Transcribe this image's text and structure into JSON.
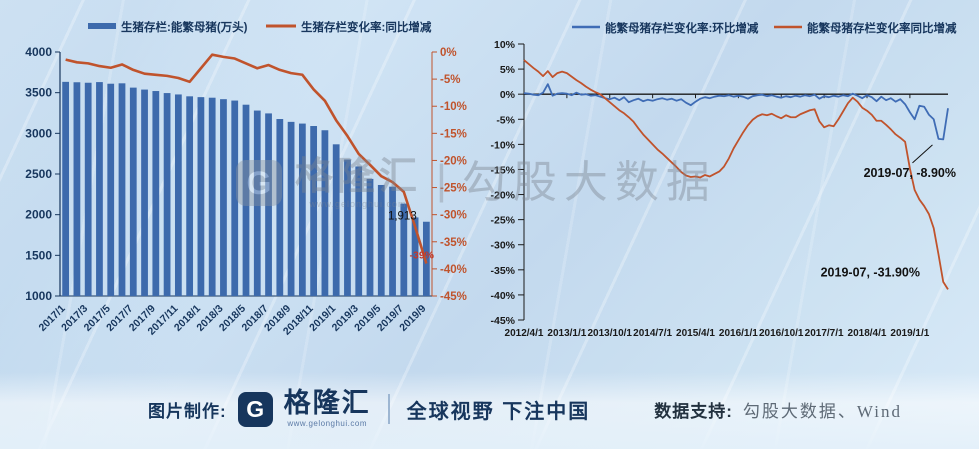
{
  "colors": {
    "navy": "#17365d",
    "bar_blue": "#3d6aac",
    "line_orange": "#c0532c",
    "line_blue": "#3f6cb5",
    "axis_black": "#1a1a1a",
    "label_red": "#c2392b"
  },
  "chart_data": [
    {
      "type": "bar+line",
      "title": "",
      "categories": [
        "2017/1",
        "2017/2",
        "2017/3",
        "2017/4",
        "2017/5",
        "2017/6",
        "2017/7",
        "2017/8",
        "2017/9",
        "2017/10",
        "2017/11",
        "2017/12",
        "2018/1",
        "2018/2",
        "2018/3",
        "2018/4",
        "2018/5",
        "2018/6",
        "2018/7",
        "2018/8",
        "2018/9",
        "2018/10",
        "2018/11",
        "2018/12",
        "2019/1",
        "2019/2",
        "2019/3",
        "2019/4",
        "2019/5",
        "2019/6",
        "2019/7",
        "2019/8",
        "2019/9"
      ],
      "series": [
        {
          "name": "生猪存栏:能繁母猪(万头)",
          "type": "bar",
          "axis": "left",
          "color": "#3d6aac",
          "values": [
            3633,
            3628,
            3622,
            3630,
            3610,
            3615,
            3562,
            3538,
            3520,
            3495,
            3478,
            3455,
            3445,
            3438,
            3420,
            3403,
            3352,
            3280,
            3245,
            3176,
            3141,
            3120,
            3090,
            3038,
            2865,
            2678,
            2593,
            2440,
            2365,
            2344,
            2136,
            1966,
            1913
          ]
        },
        {
          "name": "生猪存栏变化率:同比增减",
          "type": "line",
          "axis": "right",
          "color": "#c0532c",
          "values": [
            -1.4,
            -1.9,
            -2.1,
            -2.6,
            -2.9,
            -2.3,
            -3.3,
            -4.0,
            -4.2,
            -4.4,
            -4.8,
            -5.5,
            -3.0,
            -0.5,
            -0.9,
            -1.2,
            -2.1,
            -3.0,
            -2.4,
            -3.3,
            -3.9,
            -4.2,
            -6.9,
            -9.0,
            -12.6,
            -15.5,
            -18.8,
            -20.8,
            -22.9,
            -24.0,
            -25.8,
            -32.2,
            -39.0
          ]
        }
      ],
      "left_axis": {
        "min": 1000,
        "max": 4000,
        "ticks": [
          4000,
          3500,
          3000,
          2500,
          2000,
          1500,
          1000
        ]
      },
      "right_axis": {
        "min": -45,
        "max": 0,
        "ticks": [
          0,
          -5,
          -10,
          -15,
          -20,
          -25,
          -30,
          -35,
          -40,
          -45
        ],
        "suffix": "%"
      },
      "bar_point_label": "1,913",
      "line_point_label": "-39%",
      "x_label_every": 2,
      "grid": false,
      "legend_position": "top"
    },
    {
      "type": "line",
      "title": "",
      "x": [
        "2012/4",
        "2012/5",
        "2012/6",
        "2012/7",
        "2012/8",
        "2012/9",
        "2012/10",
        "2012/11",
        "2012/12",
        "2013/1",
        "2013/2",
        "2013/3",
        "2013/4",
        "2013/5",
        "2013/6",
        "2013/7",
        "2013/8",
        "2013/9",
        "2013/10",
        "2013/11",
        "2013/12",
        "2014/1",
        "2014/2",
        "2014/3",
        "2014/4",
        "2014/5",
        "2014/6",
        "2014/7",
        "2014/8",
        "2014/9",
        "2014/10",
        "2014/11",
        "2014/12",
        "2015/1",
        "2015/2",
        "2015/3",
        "2015/4",
        "2015/5",
        "2015/6",
        "2015/7",
        "2015/8",
        "2015/9",
        "2015/10",
        "2015/11",
        "2015/12",
        "2016/1",
        "2016/2",
        "2016/3",
        "2016/4",
        "2016/5",
        "2016/6",
        "2016/7",
        "2016/8",
        "2016/9",
        "2016/10",
        "2016/11",
        "2016/12",
        "2017/1",
        "2017/2",
        "2017/3",
        "2017/4",
        "2017/5",
        "2017/6",
        "2017/7",
        "2017/8",
        "2017/9",
        "2017/10",
        "2017/11",
        "2017/12",
        "2018/1",
        "2018/2",
        "2018/3",
        "2018/4",
        "2018/5",
        "2018/6",
        "2018/7",
        "2018/8",
        "2018/9",
        "2018/10",
        "2018/11",
        "2018/12",
        "2019/1",
        "2019/2",
        "2019/3",
        "2019/4",
        "2019/5",
        "2019/6",
        "2019/7",
        "2019/8",
        "2019/9"
      ],
      "series": [
        {
          "name": "能繁母猪存栏变化率:环比增减",
          "color": "#3f6cb5",
          "values": [
            0.2,
            0.1,
            -0.1,
            -0.2,
            0.3,
            2.0,
            -0.3,
            0.1,
            0.2,
            0.1,
            -0.2,
            0.3,
            -0.1,
            0.0,
            -0.3,
            -0.2,
            -0.5,
            -0.8,
            -1.0,
            -0.7,
            -1.2,
            -0.6,
            -1.6,
            -1.2,
            -0.9,
            -1.4,
            -1.1,
            -1.3,
            -1.0,
            -0.8,
            -1.1,
            -0.9,
            -1.3,
            -1.0,
            -1.7,
            -2.2,
            -1.5,
            -0.9,
            -0.6,
            -0.8,
            -0.5,
            -0.3,
            -0.4,
            -0.2,
            -0.5,
            -0.3,
            -0.5,
            -0.9,
            -0.4,
            -0.2,
            -0.1,
            -0.4,
            -0.2,
            -0.5,
            -0.7,
            -0.4,
            -0.6,
            -0.3,
            -0.5,
            -0.2,
            -0.4,
            -0.1,
            -0.9,
            -0.4,
            -0.6,
            -0.3,
            -0.5,
            -0.2,
            -0.4,
            0.1,
            -0.3,
            -0.8,
            -0.2,
            -0.6,
            -1.4,
            -0.5,
            -1.2,
            -0.8,
            -1.5,
            -1.0,
            -2.0,
            -3.6,
            -5.0,
            -2.3,
            -2.5,
            -4.1,
            -5.0,
            -8.9,
            -9.0,
            -2.8
          ]
        },
        {
          "name": "能繁母猪存栏变化率同比增减",
          "color": "#c0532c",
          "values": [
            6.8,
            6.0,
            5.2,
            4.5,
            3.6,
            4.6,
            3.4,
            4.2,
            4.5,
            4.2,
            3.5,
            2.8,
            2.2,
            1.5,
            0.9,
            0.4,
            0.0,
            -0.8,
            -1.6,
            -2.4,
            -3.2,
            -3.8,
            -4.6,
            -5.5,
            -6.8,
            -8.0,
            -9.0,
            -10.0,
            -11.0,
            -11.8,
            -12.7,
            -13.6,
            -14.5,
            -15.5,
            -16.2,
            -16.5,
            -16.4,
            -16.6,
            -16.1,
            -16.4,
            -15.9,
            -15.4,
            -14.4,
            -12.8,
            -10.8,
            -9.2,
            -7.6,
            -6.2,
            -5.1,
            -4.4,
            -4.0,
            -4.2,
            -3.9,
            -4.4,
            -4.8,
            -4.2,
            -4.6,
            -4.6,
            -4.0,
            -3.6,
            -3.2,
            -3.0,
            -5.4,
            -6.6,
            -6.2,
            -6.4,
            -5.0,
            -3.4,
            -1.8,
            -0.7,
            -1.5,
            -2.7,
            -3.3,
            -4.1,
            -5.3,
            -5.3,
            -6.1,
            -7.0,
            -8.0,
            -8.7,
            -9.5,
            -14.8,
            -19.1,
            -21.0,
            -22.3,
            -23.9,
            -26.7,
            -31.9,
            -37.4,
            -38.9
          ]
        }
      ],
      "y_axis": {
        "min": -45,
        "max": 10,
        "ticks": [
          10,
          5,
          0,
          -5,
          -10,
          -15,
          -20,
          -25,
          -30,
          -35,
          -40,
          -45
        ],
        "suffix": "%"
      },
      "x_tick_labels": [
        "2012/4/1",
        "2013/1/1",
        "2013/10/1",
        "2014/7/1",
        "2015/4/1",
        "2016/1/1",
        "2016/10/1",
        "2017/7/1",
        "2018/4/1",
        "2019/1/1"
      ],
      "x_tick_months": [
        0,
        9,
        18,
        27,
        36,
        45,
        54,
        63,
        72,
        81
      ],
      "annotations": [
        {
          "text": "2019-07, -8.90%",
          "series": 0,
          "index": 87
        },
        {
          "text": "2019-07, -31.90%",
          "series": 1,
          "index": 87
        }
      ],
      "grid": false,
      "legend_position": "top"
    }
  ],
  "watermark": {
    "logo_letter": "G",
    "brand": "格隆汇",
    "url": "www.gelonghui.com",
    "divider": "|",
    "text": "勾股大数据"
  },
  "footer": {
    "made_by_label": "图片制作:",
    "logo_letter": "G",
    "brand_name": "格隆汇",
    "brand_url": "www.gelonghui.com",
    "slogan": "全球视野 下注中国",
    "data_support_label": "数据支持:",
    "data_support_value": "勾股大数据、Wind"
  }
}
